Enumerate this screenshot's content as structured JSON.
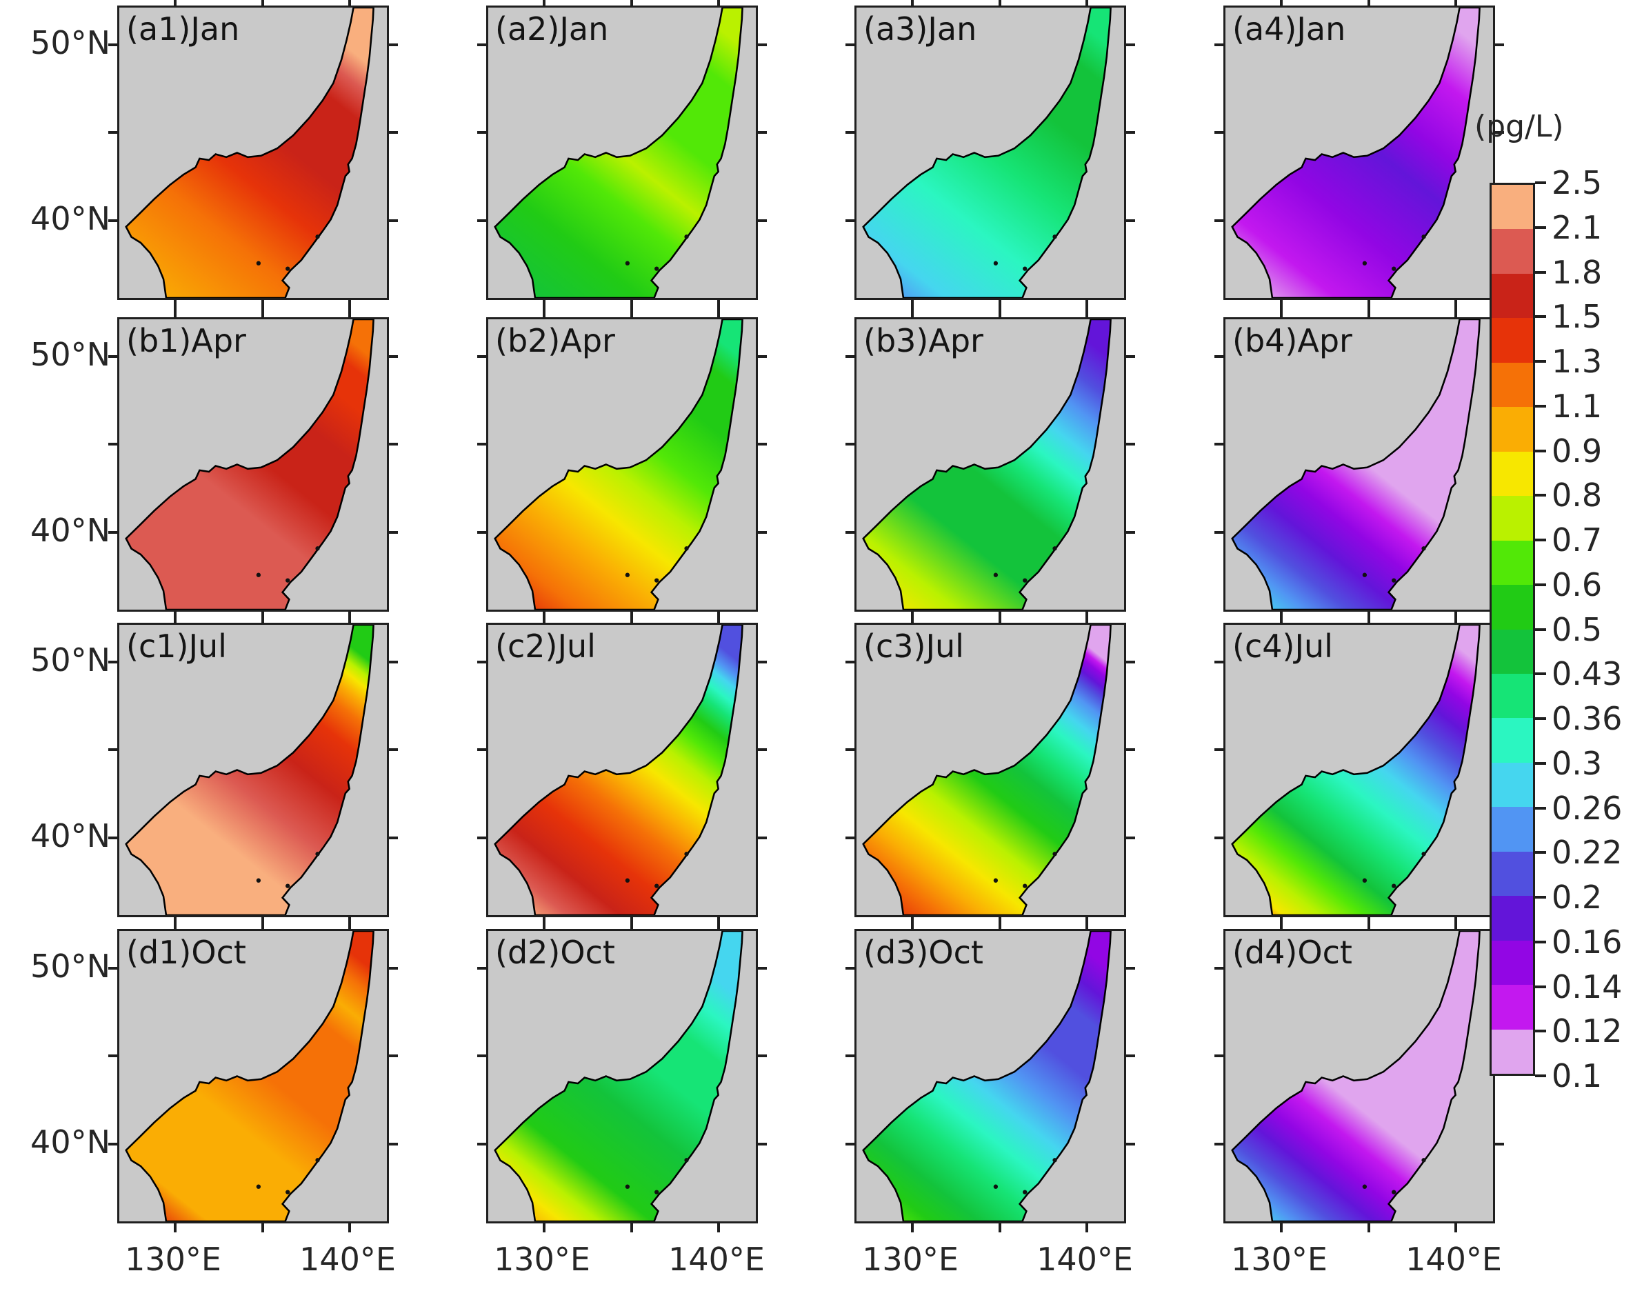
{
  "unit_label": "(pg/L)",
  "colorbar": {
    "tick_labels": [
      "2.5",
      "2.1",
      "1.8",
      "1.5",
      "1.3",
      "1.1",
      "0.9",
      "0.8",
      "0.7",
      "0.6",
      "0.5",
      "0.43",
      "0.36",
      "0.3",
      "0.26",
      "0.22",
      "0.2",
      "0.16",
      "0.14",
      "0.12",
      "0.1"
    ],
    "segment_colors_top_to_bottom": [
      "#F9AF7E",
      "#DC5A52",
      "#C92318",
      "#E63309",
      "#F57107",
      "#FAAD04",
      "#F7E700",
      "#BAF100",
      "#52E807",
      "#21CB15",
      "#13C33B",
      "#16E476",
      "#2BF6C1",
      "#45D6EF",
      "#5195F3",
      "#5150DF",
      "#6315D9",
      "#9206E4",
      "#C318EF",
      "#E0A5EE"
    ]
  },
  "axis": {
    "y_labels": [
      {
        "text": "50°N",
        "tick_index": 0
      },
      {
        "text": "40°N",
        "tick_index": 2
      }
    ],
    "x_labels": [
      {
        "text": "130°E",
        "tick_index": 0
      },
      {
        "text": "140°E",
        "tick_index": 2
      }
    ]
  },
  "colors": {
    "land": "#C9C9C9",
    "coastline": "#000000",
    "frame": "#1F1F1F",
    "text": "#262626"
  },
  "panels": [
    {
      "id": "a1",
      "label": "(a1)Jan",
      "row": 0,
      "col": 0,
      "month": "Jan",
      "stops": [
        [
          0,
          "#FAAD04"
        ],
        [
          0.28,
          "#F57107"
        ],
        [
          0.45,
          "#E63309"
        ],
        [
          0.6,
          "#C92318"
        ],
        [
          0.8,
          "#C92318"
        ],
        [
          0.88,
          "#DC5A52"
        ],
        [
          0.95,
          "#F9AF7E"
        ],
        [
          1,
          "#F9AF7E"
        ]
      ]
    },
    {
      "id": "a2",
      "label": "(a2)Jan",
      "row": 0,
      "col": 1,
      "month": "Jan",
      "stops": [
        [
          0,
          "#13C33B"
        ],
        [
          0.22,
          "#21CB15"
        ],
        [
          0.4,
          "#52E807"
        ],
        [
          0.52,
          "#BAF100"
        ],
        [
          0.66,
          "#52E807"
        ],
        [
          0.88,
          "#52E807"
        ],
        [
          1,
          "#BAF100"
        ]
      ]
    },
    {
      "id": "a3",
      "label": "(a3)Jan",
      "row": 0,
      "col": 2,
      "month": "Jan",
      "stops": [
        [
          0,
          "#5195F3"
        ],
        [
          0.1,
          "#45D6EF"
        ],
        [
          0.32,
          "#2BF6C1"
        ],
        [
          0.52,
          "#16E476"
        ],
        [
          0.72,
          "#13C33B"
        ],
        [
          0.9,
          "#13C33B"
        ],
        [
          1,
          "#16E476"
        ]
      ]
    },
    {
      "id": "a4",
      "label": "(a4)Jan",
      "row": 0,
      "col": 3,
      "month": "Jan",
      "stops": [
        [
          0,
          "#E0A5EE"
        ],
        [
          0.14,
          "#C318EF"
        ],
        [
          0.34,
          "#9206E4"
        ],
        [
          0.56,
          "#6315D9"
        ],
        [
          0.68,
          "#9206E4"
        ],
        [
          0.85,
          "#C318EF"
        ],
        [
          1,
          "#E0A5EE"
        ]
      ]
    },
    {
      "id": "b1",
      "label": "(b1)Apr",
      "row": 1,
      "col": 0,
      "month": "Apr",
      "stops": [
        [
          0,
          "#DC5A52"
        ],
        [
          0.4,
          "#DC5A52"
        ],
        [
          0.55,
          "#C92318"
        ],
        [
          0.72,
          "#C92318"
        ],
        [
          0.85,
          "#E63309"
        ],
        [
          0.94,
          "#E63309"
        ],
        [
          1,
          "#F57107"
        ]
      ]
    },
    {
      "id": "b2",
      "label": "(b2)Apr",
      "row": 1,
      "col": 1,
      "month": "Apr",
      "stops": [
        [
          0,
          "#E63309"
        ],
        [
          0.1,
          "#F57107"
        ],
        [
          0.25,
          "#FAAD04"
        ],
        [
          0.38,
          "#F7E700"
        ],
        [
          0.5,
          "#BAF100"
        ],
        [
          0.62,
          "#52E807"
        ],
        [
          0.78,
          "#21CB15"
        ],
        [
          0.92,
          "#21CB15"
        ],
        [
          1,
          "#16E476"
        ]
      ]
    },
    {
      "id": "b3",
      "label": "(b3)Apr",
      "row": 1,
      "col": 2,
      "month": "Apr",
      "stops": [
        [
          0,
          "#F7E700"
        ],
        [
          0.12,
          "#BAF100"
        ],
        [
          0.3,
          "#13C33B"
        ],
        [
          0.48,
          "#13C33B"
        ],
        [
          0.57,
          "#16E476"
        ],
        [
          0.65,
          "#2BF6C1"
        ],
        [
          0.73,
          "#45D6EF"
        ],
        [
          0.82,
          "#5195F3"
        ],
        [
          0.9,
          "#5150DF"
        ],
        [
          1,
          "#6315D9"
        ]
      ]
    },
    {
      "id": "b4",
      "label": "(b4)Apr",
      "row": 1,
      "col": 3,
      "month": "Apr",
      "stops": [
        [
          0,
          "#45D6EF"
        ],
        [
          0.08,
          "#5195F3"
        ],
        [
          0.16,
          "#5150DF"
        ],
        [
          0.26,
          "#6315D9"
        ],
        [
          0.36,
          "#9206E4"
        ],
        [
          0.44,
          "#C318EF"
        ],
        [
          0.54,
          "#E0A5EE"
        ],
        [
          1,
          "#E0A5EE"
        ]
      ]
    },
    {
      "id": "c1",
      "label": "(c1)Jul",
      "row": 2,
      "col": 0,
      "month": "Jul",
      "stops": [
        [
          0,
          "#F9AF7E"
        ],
        [
          0.3,
          "#F9AF7E"
        ],
        [
          0.46,
          "#DC5A52"
        ],
        [
          0.62,
          "#C92318"
        ],
        [
          0.76,
          "#E63309"
        ],
        [
          0.84,
          "#F57107"
        ],
        [
          0.89,
          "#FAAD04"
        ],
        [
          0.93,
          "#F7E700"
        ],
        [
          0.96,
          "#BAF100"
        ],
        [
          1,
          "#21CB15"
        ]
      ]
    },
    {
      "id": "c2",
      "label": "(c2)Jul",
      "row": 2,
      "col": 1,
      "month": "Jul",
      "stops": [
        [
          0,
          "#F9AF7E"
        ],
        [
          0.08,
          "#DC5A52"
        ],
        [
          0.18,
          "#C92318"
        ],
        [
          0.3,
          "#E63309"
        ],
        [
          0.42,
          "#F57107"
        ],
        [
          0.5,
          "#FAAD04"
        ],
        [
          0.58,
          "#F7E700"
        ],
        [
          0.66,
          "#BAF100"
        ],
        [
          0.73,
          "#52E807"
        ],
        [
          0.79,
          "#21CB15"
        ],
        [
          0.85,
          "#16E476"
        ],
        [
          0.89,
          "#2BF6C1"
        ],
        [
          0.93,
          "#45D6EF"
        ],
        [
          0.96,
          "#5195F3"
        ],
        [
          1,
          "#5150DF"
        ]
      ]
    },
    {
      "id": "c3",
      "label": "(c3)Jul",
      "row": 2,
      "col": 2,
      "month": "Jul",
      "stops": [
        [
          0,
          "#E63309"
        ],
        [
          0.09,
          "#F57107"
        ],
        [
          0.17,
          "#FAAD04"
        ],
        [
          0.26,
          "#F7E700"
        ],
        [
          0.36,
          "#BAF100"
        ],
        [
          0.48,
          "#21CB15"
        ],
        [
          0.58,
          "#13C33B"
        ],
        [
          0.66,
          "#16E476"
        ],
        [
          0.74,
          "#2BF6C1"
        ],
        [
          0.8,
          "#45D6EF"
        ],
        [
          0.86,
          "#5195F3"
        ],
        [
          0.9,
          "#5150DF"
        ],
        [
          0.93,
          "#6315D9"
        ],
        [
          0.96,
          "#9206E4"
        ],
        [
          0.98,
          "#C318EF"
        ],
        [
          1,
          "#E0A5EE"
        ]
      ]
    },
    {
      "id": "c4",
      "label": "(c4)Jul",
      "row": 2,
      "col": 3,
      "month": "Jul",
      "stops": [
        [
          0,
          "#F57107"
        ],
        [
          0.04,
          "#F7E700"
        ],
        [
          0.11,
          "#BAF100"
        ],
        [
          0.19,
          "#52E807"
        ],
        [
          0.27,
          "#13C33B"
        ],
        [
          0.37,
          "#16E476"
        ],
        [
          0.47,
          "#2BF6C1"
        ],
        [
          0.57,
          "#45D6EF"
        ],
        [
          0.65,
          "#5195F3"
        ],
        [
          0.73,
          "#5150DF"
        ],
        [
          0.81,
          "#6315D9"
        ],
        [
          0.88,
          "#9206E4"
        ],
        [
          0.93,
          "#C318EF"
        ],
        [
          1,
          "#E0A5EE"
        ]
      ]
    },
    {
      "id": "d1",
      "label": "(d1)Oct",
      "row": 3,
      "col": 0,
      "month": "Oct",
      "stops": [
        [
          0,
          "#E63309"
        ],
        [
          0.1,
          "#FAAD04"
        ],
        [
          0.38,
          "#FAAD04"
        ],
        [
          0.55,
          "#F57107"
        ],
        [
          0.78,
          "#F57107"
        ],
        [
          0.86,
          "#FAAD04"
        ],
        [
          0.94,
          "#F57107"
        ],
        [
          1,
          "#E63309"
        ]
      ]
    },
    {
      "id": "d2",
      "label": "(d2)Oct",
      "row": 3,
      "col": 1,
      "month": "Oct",
      "stops": [
        [
          0,
          "#FAAD04"
        ],
        [
          0.07,
          "#F7E700"
        ],
        [
          0.14,
          "#BAF100"
        ],
        [
          0.24,
          "#21CB15"
        ],
        [
          0.45,
          "#13C33B"
        ],
        [
          0.6,
          "#16E476"
        ],
        [
          0.74,
          "#16E476"
        ],
        [
          0.84,
          "#2BF6C1"
        ],
        [
          0.93,
          "#45D6EF"
        ],
        [
          1,
          "#45D6EF"
        ]
      ]
    },
    {
      "id": "d3",
      "label": "(d3)Oct",
      "row": 3,
      "col": 2,
      "month": "Oct",
      "stops": [
        [
          0,
          "#52E807"
        ],
        [
          0.07,
          "#21CB15"
        ],
        [
          0.16,
          "#13C33B"
        ],
        [
          0.28,
          "#16E476"
        ],
        [
          0.38,
          "#2BF6C1"
        ],
        [
          0.48,
          "#45D6EF"
        ],
        [
          0.58,
          "#5195F3"
        ],
        [
          0.7,
          "#5150DF"
        ],
        [
          0.84,
          "#5150DF"
        ],
        [
          0.92,
          "#6315D9"
        ],
        [
          1,
          "#9206E4"
        ]
      ]
    },
    {
      "id": "d4",
      "label": "(d4)Oct",
      "row": 3,
      "col": 3,
      "month": "Oct",
      "stops": [
        [
          0,
          "#45D6EF"
        ],
        [
          0.06,
          "#5195F3"
        ],
        [
          0.13,
          "#5150DF"
        ],
        [
          0.21,
          "#6315D9"
        ],
        [
          0.28,
          "#9206E4"
        ],
        [
          0.36,
          "#C318EF"
        ],
        [
          0.45,
          "#E0A5EE"
        ],
        [
          1,
          "#E0A5EE"
        ]
      ]
    }
  ],
  "chart_data": {
    "type": "heatmap",
    "title": "",
    "rows_months": [
      "Jan",
      "Apr",
      "Jul",
      "Oct"
    ],
    "panel_grid_labels": [
      [
        "(a1)Jan",
        "(a2)Jan",
        "(a3)Jan",
        "(a4)Jan"
      ],
      [
        "(b1)Apr",
        "(b2)Apr",
        "(b3)Apr",
        "(b4)Apr"
      ],
      [
        "(c1)Jul",
        "(c2)Jul",
        "(c3)Jul",
        "(c4)Jul"
      ],
      [
        "(d1)Oct",
        "(d2)Oct",
        "(d3)Oct",
        "(d4)Oct"
      ]
    ],
    "xlabel_ticks": [
      "130°E",
      "140°E"
    ],
    "ylabel_ticks": [
      "50°N",
      "40°N"
    ],
    "colorbar_unit": "(pg/L)",
    "colorbar_levels": [
      2.5,
      2.1,
      1.8,
      1.5,
      1.3,
      1.1,
      0.9,
      0.8,
      0.7,
      0.6,
      0.5,
      0.43,
      0.36,
      0.3,
      0.26,
      0.22,
      0.2,
      0.16,
      0.14,
      0.12,
      0.1
    ],
    "legend_position": "right"
  }
}
